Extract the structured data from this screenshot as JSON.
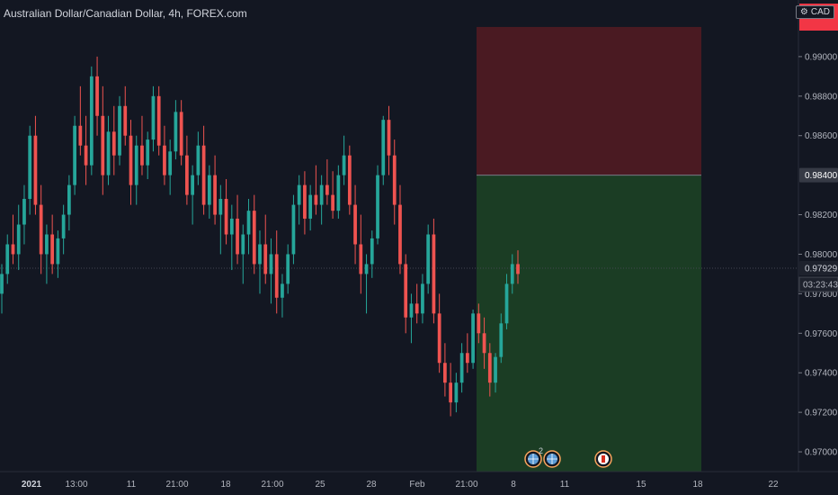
{
  "header": {
    "title": "Australian Dollar/Canadian Dollar, 4h, FOREX.com",
    "currency_badge": "CAD"
  },
  "price_axis": {
    "ticks": [
      "0.99000",
      "0.98800",
      "0.98600",
      "0.98200",
      "0.98000",
      "0.97800",
      "0.97600",
      "0.97400",
      "0.97200",
      "0.97000"
    ],
    "stop_level_label": "0.98400",
    "last_price_label": "0.97929",
    "countdown_label": "03:23:43"
  },
  "time_axis": {
    "ticks": [
      "2021",
      "13:00",
      "11",
      "21:00",
      "18",
      "21:00",
      "25",
      "28",
      "Feb",
      "21:00",
      "8",
      "11",
      "15",
      "18",
      "22"
    ]
  },
  "colors": {
    "background": "#131722",
    "up": "#26a69a",
    "down": "#ef5350",
    "stop_zone": "#4a1a22",
    "target_zone": "#1b3d24",
    "badge_red": "#f23645"
  },
  "chart_data": {
    "type": "candlestick",
    "symbol": "AUDCAD",
    "timeframe": "4h",
    "ylim": [
      0.969,
      0.9925
    ],
    "last_price": 0.97929,
    "position": {
      "type": "short",
      "entry": 0.984,
      "stop_top": 0.9915,
      "target": 0.969
    },
    "events": [
      {
        "icon": "globe-event",
        "count": "2"
      },
      {
        "icon": "globe-event",
        "count": ""
      },
      {
        "icon": "canada-flag-event",
        "count": ""
      }
    ],
    "candles": [
      [
        0.978,
        0.9795,
        0.977,
        0.979
      ],
      [
        0.979,
        0.981,
        0.9785,
        0.9805
      ],
      [
        0.9805,
        0.982,
        0.9795,
        0.98
      ],
      [
        0.98,
        0.9825,
        0.9792,
        0.9815
      ],
      [
        0.9815,
        0.9835,
        0.9805,
        0.9828
      ],
      [
        0.9828,
        0.9865,
        0.982,
        0.986
      ],
      [
        0.986,
        0.987,
        0.982,
        0.9825
      ],
      [
        0.9825,
        0.9835,
        0.979,
        0.98
      ],
      [
        0.98,
        0.9815,
        0.9785,
        0.981
      ],
      [
        0.981,
        0.982,
        0.979,
        0.9795
      ],
      [
        0.9795,
        0.9812,
        0.9788,
        0.9808
      ],
      [
        0.9808,
        0.9825,
        0.98,
        0.982
      ],
      [
        0.982,
        0.984,
        0.9812,
        0.9835
      ],
      [
        0.9835,
        0.987,
        0.983,
        0.9865
      ],
      [
        0.9865,
        0.9885,
        0.985,
        0.9855
      ],
      [
        0.9855,
        0.987,
        0.9835,
        0.9845
      ],
      [
        0.9845,
        0.9895,
        0.984,
        0.989
      ],
      [
        0.989,
        0.99,
        0.986,
        0.987
      ],
      [
        0.987,
        0.9885,
        0.983,
        0.984
      ],
      [
        0.984,
        0.987,
        0.9835,
        0.9862
      ],
      [
        0.9862,
        0.9875,
        0.984,
        0.985
      ],
      [
        0.985,
        0.988,
        0.9845,
        0.9875
      ],
      [
        0.9875,
        0.9885,
        0.9855,
        0.986
      ],
      [
        0.986,
        0.9868,
        0.9825,
        0.9835
      ],
      [
        0.9835,
        0.986,
        0.9825,
        0.9855
      ],
      [
        0.9855,
        0.987,
        0.984,
        0.9845
      ],
      [
        0.9845,
        0.9862,
        0.9838,
        0.9858
      ],
      [
        0.9858,
        0.9885,
        0.9852,
        0.988
      ],
      [
        0.988,
        0.9885,
        0.985,
        0.9855
      ],
      [
        0.9855,
        0.9865,
        0.9835,
        0.984
      ],
      [
        0.984,
        0.9858,
        0.983,
        0.9852
      ],
      [
        0.9852,
        0.9878,
        0.9848,
        0.9872
      ],
      [
        0.9872,
        0.9878,
        0.9845,
        0.985
      ],
      [
        0.985,
        0.986,
        0.9825,
        0.983
      ],
      [
        0.983,
        0.9845,
        0.9815,
        0.984
      ],
      [
        0.984,
        0.9862,
        0.9835,
        0.9855
      ],
      [
        0.9855,
        0.9865,
        0.982,
        0.9825
      ],
      [
        0.9825,
        0.9845,
        0.9818,
        0.984
      ],
      [
        0.984,
        0.985,
        0.9815,
        0.982
      ],
      [
        0.982,
        0.9835,
        0.98,
        0.9828
      ],
      [
        0.9828,
        0.9838,
        0.9805,
        0.981
      ],
      [
        0.981,
        0.9825,
        0.9792,
        0.9818
      ],
      [
        0.9818,
        0.983,
        0.9795,
        0.98
      ],
      [
        0.98,
        0.9815,
        0.9785,
        0.981
      ],
      [
        0.981,
        0.9828,
        0.98,
        0.9822
      ],
      [
        0.9822,
        0.983,
        0.979,
        0.9795
      ],
      [
        0.9795,
        0.9812,
        0.978,
        0.9805
      ],
      [
        0.9805,
        0.982,
        0.9785,
        0.979
      ],
      [
        0.979,
        0.9808,
        0.9775,
        0.98
      ],
      [
        0.98,
        0.9812,
        0.977,
        0.9778
      ],
      [
        0.9778,
        0.979,
        0.9768,
        0.9785
      ],
      [
        0.9785,
        0.9805,
        0.978,
        0.98
      ],
      [
        0.98,
        0.983,
        0.9795,
        0.9825
      ],
      [
        0.9825,
        0.984,
        0.9815,
        0.9835
      ],
      [
        0.9835,
        0.9842,
        0.981,
        0.9818
      ],
      [
        0.9818,
        0.9835,
        0.9812,
        0.983
      ],
      [
        0.983,
        0.9845,
        0.982,
        0.9825
      ],
      [
        0.9825,
        0.984,
        0.9815,
        0.9835
      ],
      [
        0.9835,
        0.9848,
        0.9825,
        0.983
      ],
      [
        0.983,
        0.9842,
        0.9818,
        0.9822
      ],
      [
        0.9822,
        0.9845,
        0.9818,
        0.984
      ],
      [
        0.984,
        0.986,
        0.9835,
        0.985
      ],
      [
        0.985,
        0.9855,
        0.982,
        0.9825
      ],
      [
        0.9825,
        0.9835,
        0.9795,
        0.9805
      ],
      [
        0.9805,
        0.982,
        0.978,
        0.979
      ],
      [
        0.979,
        0.98,
        0.977,
        0.9795
      ],
      [
        0.9795,
        0.9812,
        0.9788,
        0.9808
      ],
      [
        0.9808,
        0.9845,
        0.9805,
        0.984
      ],
      [
        0.984,
        0.987,
        0.9835,
        0.9868
      ],
      [
        0.9868,
        0.9875,
        0.984,
        0.985
      ],
      [
        0.985,
        0.9858,
        0.9815,
        0.9825
      ],
      [
        0.9825,
        0.9835,
        0.979,
        0.9795
      ],
      [
        0.9795,
        0.98,
        0.976,
        0.9768
      ],
      [
        0.9768,
        0.978,
        0.9755,
        0.9775
      ],
      [
        0.9775,
        0.9785,
        0.9765,
        0.977
      ],
      [
        0.977,
        0.979,
        0.9765,
        0.9785
      ],
      [
        0.9785,
        0.9815,
        0.978,
        0.981
      ],
      [
        0.981,
        0.9818,
        0.9765,
        0.977
      ],
      [
        0.977,
        0.978,
        0.974,
        0.9745
      ],
      [
        0.9745,
        0.9755,
        0.9728,
        0.9735
      ],
      [
        0.9735,
        0.9745,
        0.9718,
        0.9725
      ],
      [
        0.9725,
        0.974,
        0.972,
        0.9735
      ],
      [
        0.9735,
        0.9755,
        0.973,
        0.975
      ],
      [
        0.975,
        0.976,
        0.974,
        0.9745
      ],
      [
        0.9745,
        0.9772,
        0.9742,
        0.977
      ],
      [
        0.977,
        0.9775,
        0.9755,
        0.976
      ],
      [
        0.976,
        0.9768,
        0.9742,
        0.975
      ],
      [
        0.975,
        0.9755,
        0.9728,
        0.9735
      ],
      [
        0.9735,
        0.975,
        0.973,
        0.9748
      ],
      [
        0.9748,
        0.977,
        0.9745,
        0.9765
      ],
      [
        0.9765,
        0.979,
        0.9762,
        0.9785
      ],
      [
        0.9785,
        0.98,
        0.978,
        0.9795
      ],
      [
        0.9795,
        0.9802,
        0.9785,
        0.979
      ]
    ]
  }
}
